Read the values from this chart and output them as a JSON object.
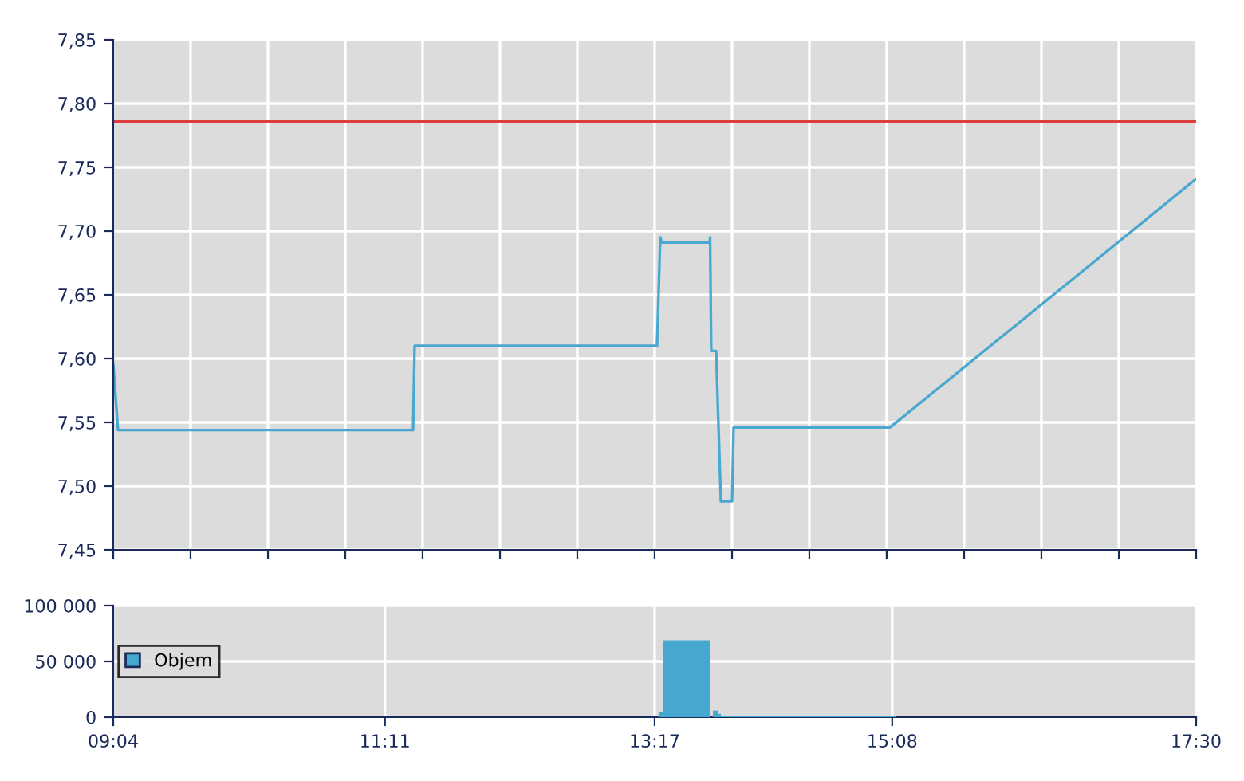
{
  "chart_data": [
    {
      "type": "line",
      "tick_labels": "y",
      "grid": true,
      "series": [
        {
          "color": "#4aa8d0",
          "x": [
            9.067,
            9.104,
            11.402,
            11.414,
            13.302,
            13.327,
            13.34,
            13.712,
            13.715,
            13.724,
            13.762,
            13.799,
            13.886,
            13.898,
            15.116,
            17.5
          ],
          "values": [
            7.596,
            7.544,
            7.544,
            7.61,
            7.61,
            7.695,
            7.691,
            7.691,
            7.695,
            7.606,
            7.606,
            7.488,
            7.488,
            7.546,
            7.546,
            7.741
          ]
        }
      ],
      "xlim": [
        9.067,
        17.5
      ],
      "xticks": [
        {
          "value": 9.067,
          "label": null
        },
        {
          "value": 9.669,
          "label": null
        },
        {
          "value": 10.272,
          "label": null
        },
        {
          "value": 10.874,
          "label": null
        },
        {
          "value": 11.476,
          "label": null
        },
        {
          "value": 12.079,
          "label": null
        },
        {
          "value": 12.681,
          "label": null
        },
        {
          "value": 13.283,
          "label": null
        },
        {
          "value": 13.886,
          "label": null
        },
        {
          "value": 14.488,
          "label": null
        },
        {
          "value": 15.09,
          "label": null
        },
        {
          "value": 15.693,
          "label": null
        },
        {
          "value": 16.295,
          "label": null
        },
        {
          "value": 16.898,
          "label": null
        },
        {
          "value": 17.5,
          "label": null
        }
      ],
      "ylim": [
        7.45,
        7.85
      ],
      "yticks": [
        {
          "value": 7.45,
          "label": "7,45"
        },
        {
          "value": 7.5,
          "label": "7,50"
        },
        {
          "value": 7.55,
          "label": "7,55"
        },
        {
          "value": 7.6,
          "label": "7,60"
        },
        {
          "value": 7.65,
          "label": "7,65"
        },
        {
          "value": 7.7,
          "label": "7,70"
        },
        {
          "value": 7.75,
          "label": "7,75"
        },
        {
          "value": 7.8,
          "label": "7,80"
        },
        {
          "value": 7.85,
          "label": "7,85"
        }
      ],
      "ref_lines": [
        {
          "axis": "y",
          "value": 7.786,
          "color": "#e03c3c"
        }
      ]
    },
    {
      "type": "histogram",
      "grid": true,
      "legend": "left",
      "bins": [
        13.314,
        13.351,
        13.712,
        13.737,
        13.774,
        13.799,
        15.165
      ],
      "series": [
        {
          "name": "Objem",
          "color": "#46a8d0",
          "values": [
            5000,
            69000,
            0,
            6000,
            3000,
            1000
          ]
        }
      ],
      "xlim": [
        9.067,
        17.5
      ],
      "xticks": [
        {
          "value": 9.067,
          "label": "09:04"
        },
        {
          "value": 11.183,
          "label": "11:11"
        },
        {
          "value": 13.283,
          "label": "13:17"
        },
        {
          "value": 15.133,
          "label": "15:08"
        },
        {
          "value": 17.5,
          "label": "17:30"
        }
      ],
      "ylim": [
        0,
        100000
      ],
      "yticks": [
        {
          "value": 0,
          "label": "0"
        },
        {
          "value": 50000,
          "label": "50 000"
        },
        {
          "value": 100000,
          "label": "100 000"
        }
      ]
    }
  ]
}
